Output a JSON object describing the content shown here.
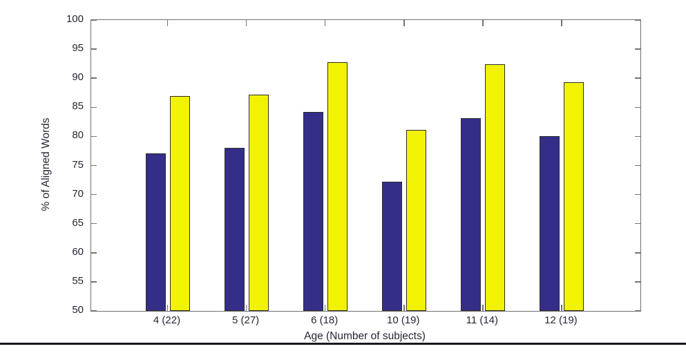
{
  "figure": {
    "background": "#ffffff",
    "axis_color": "#6f6f6f",
    "tick_color": "#737373",
    "text_color": "#262633",
    "divider_color": "#14141c"
  },
  "chart_data": {
    "type": "bar",
    "title": "",
    "xlabel": "Age (Number of subjects)",
    "ylabel": "% of Aligned Words",
    "categories": [
      "4 (22)",
      "5 (27)",
      "6 (18)",
      "10 (19)",
      "11 (14)",
      "12 (19)"
    ],
    "series": [
      {
        "name": "series-blue",
        "color": "#352e88",
        "values": [
          77.1,
          78.0,
          84.2,
          72.2,
          83.1,
          80.0
        ]
      },
      {
        "name": "series-yellow",
        "color": "#f2f205",
        "values": [
          86.9,
          87.2,
          92.8,
          81.1,
          92.4,
          89.3
        ]
      }
    ],
    "ylim": [
      50,
      100
    ],
    "yticks": [
      50,
      55,
      60,
      65,
      70,
      75,
      80,
      85,
      90,
      95,
      100
    ],
    "grid": false,
    "legend_position": "none",
    "box": true,
    "tick_direction": "in"
  }
}
